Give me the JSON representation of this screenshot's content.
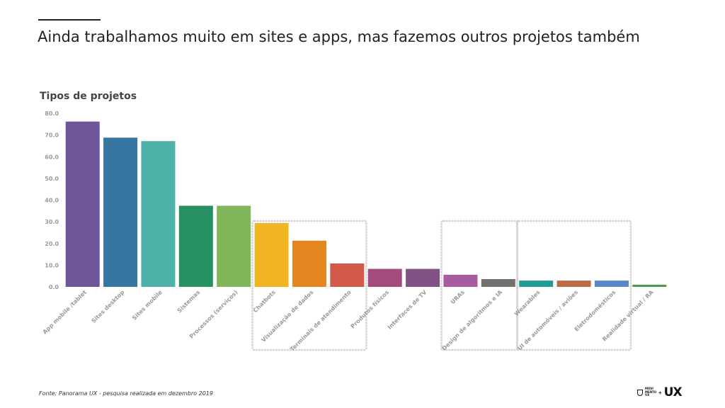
{
  "slide": {
    "title": "Ainda trabalhamos muito em sites e apps, mas fazemos outros projetos também",
    "footer": "Fonte: Panorama UX - pesquisa realizada em dezembro 2019",
    "logo_small_text": "MOVI MENTO UX",
    "logo_plus": "+",
    "logo_big_text": "UX"
  },
  "chart_data": {
    "type": "bar",
    "title": "Tipos de projetos",
    "xlabel": "",
    "ylabel": "",
    "ylim": [
      0,
      80
    ],
    "yticks": [
      "0.0",
      "10.0",
      "20.0",
      "30.0",
      "40.0",
      "50.0",
      "60.0",
      "70.0",
      "80.0"
    ],
    "grid": false,
    "categories": [
      "App mobile /tablet",
      "Sites desktop",
      "Sites mobile",
      "Sistemas",
      "Processos (serviços)",
      "Chatbots",
      "Visualização de dados",
      "Terminais de atendimento",
      "Produtos físicos",
      "Interfaces de TV",
      "URAs",
      "Design de algoritmos e IA",
      "Wearables",
      "UI de automóveis / aviões",
      "Eletrodomésticos",
      "Realidade virtual / RA"
    ],
    "values": [
      76.2,
      68.8,
      67.2,
      37.4,
      37.4,
      29.4,
      21.3,
      10.8,
      8.3,
      8.3,
      5.6,
      3.6,
      2.9,
      2.9,
      2.9,
      1.0
    ],
    "colors": [
      "#6e5798",
      "#3577a1",
      "#4fb2aa",
      "#279163",
      "#81b75a",
      "#f0b521",
      "#e4861f",
      "#d25a4a",
      "#a44b7e",
      "#805384",
      "#a75c9f",
      "#717171",
      "#229b96",
      "#ba6b46",
      "#5987c8",
      "#4c9a52"
    ],
    "highlight_groups": [
      {
        "from": 5,
        "to": 7
      },
      {
        "from": 10,
        "to": 11
      },
      {
        "from": 12,
        "to": 14
      }
    ]
  }
}
